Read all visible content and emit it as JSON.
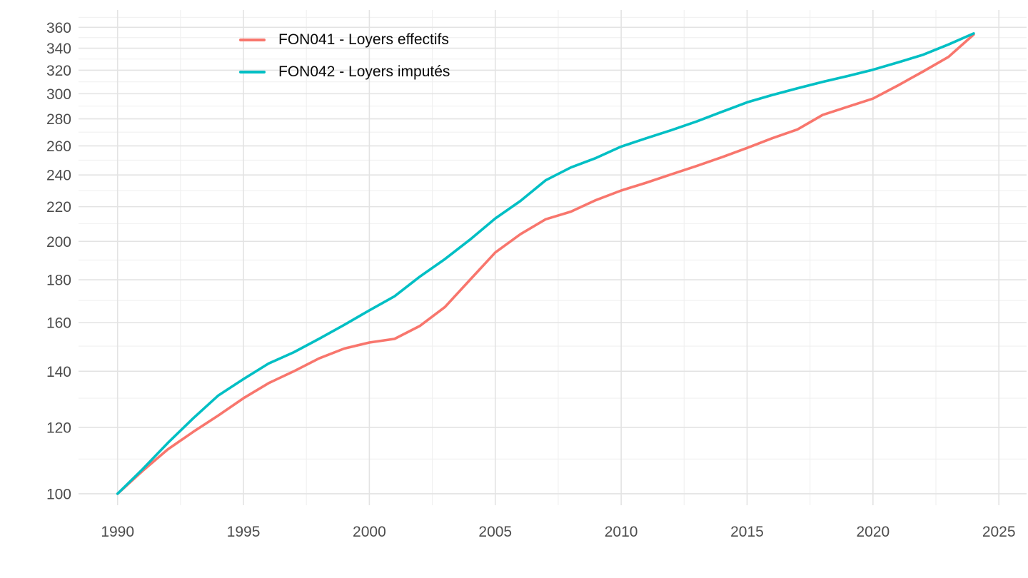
{
  "chart_data": {
    "type": "line",
    "title": "",
    "xlabel": "",
    "ylabel": "",
    "grid": true,
    "legend_position": "inside-top-left",
    "colors": {
      "background": "#FFFFFF",
      "grid_major": "#E3E3E3",
      "grid_minor": "#F0F0F0",
      "axis_text": "#4D4D4D",
      "legend_text": "#0A0A0A"
    },
    "x": [
      1990,
      1991,
      1992,
      1993,
      1994,
      1995,
      1996,
      1997,
      1998,
      1999,
      2000,
      2001,
      2002,
      2003,
      2004,
      2005,
      2006,
      2007,
      2008,
      2009,
      2010,
      2011,
      2012,
      2013,
      2014,
      2015,
      2016,
      2017,
      2018,
      2019,
      2020,
      2021,
      2022,
      2023,
      2024
    ],
    "series": [
      {
        "id": "FON041",
        "label": "FON041 - Loyers effectifs",
        "color": "#F8766D",
        "values": [
          100,
          106.5,
          113,
          118.5,
          124,
          130,
          135.5,
          140,
          145,
          149,
          151.5,
          153,
          158.5,
          167,
          180,
          194,
          204,
          212.5,
          217,
          224,
          230,
          235,
          240.5,
          246,
          252,
          258.5,
          265.5,
          272,
          283,
          289.5,
          296,
          307,
          319,
          332,
          353
        ]
      },
      {
        "id": "FON042",
        "label": "FON042 - Loyers imputés",
        "color": "#00BFC4",
        "values": [
          100,
          107,
          115,
          123,
          131,
          137,
          143,
          147.5,
          153,
          159,
          165.5,
          172,
          181.5,
          190.5,
          201,
          213,
          223.5,
          236.5,
          245,
          251.5,
          259.5,
          265.5,
          271.5,
          278,
          285.5,
          293,
          299,
          304.5,
          310,
          315,
          320.5,
          327,
          334,
          343.5,
          354
        ]
      }
    ],
    "x_axis": {
      "ticks": [
        1990,
        1995,
        2000,
        2005,
        2010,
        2015,
        2020,
        2025
      ],
      "minor_ticks": [
        1992.5,
        1997.5,
        2002.5,
        2007.5,
        2012.5,
        2017.5,
        2022.5
      ],
      "range": [
        1988.45,
        2026.1
      ]
    },
    "y_axis": {
      "scale": "log10",
      "ticks": [
        100,
        120,
        140,
        160,
        180,
        200,
        220,
        240,
        260,
        280,
        300,
        320,
        340,
        360
      ],
      "minor_ticks": [
        110,
        130,
        150,
        170,
        190,
        210,
        230,
        250,
        270,
        290,
        310,
        330,
        350,
        370
      ],
      "range": [
        96.9,
        377.6
      ]
    }
  }
}
